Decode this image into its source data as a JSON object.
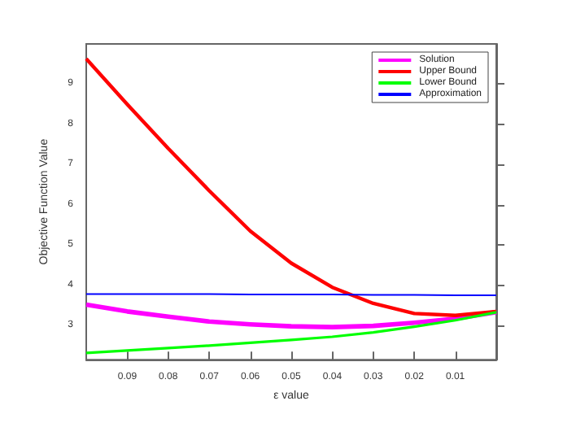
{
  "chart_data": {
    "type": "line",
    "xlabel": "ε value",
    "ylabel": "Objective Function Value",
    "x": [
      0.1,
      0.09,
      0.08,
      0.07,
      0.06,
      0.05,
      0.04,
      0.03,
      0.02,
      0.01,
      0
    ],
    "series": [
      {
        "name": "Solution",
        "color": "#ff00ff",
        "values": [
          3.52,
          3.35,
          3.22,
          3.1,
          3.03,
          2.98,
          2.96,
          2.99,
          3.07,
          3.17,
          3.33
        ]
      },
      {
        "name": "Upper Bound",
        "color": "#ff0000",
        "values": [
          9.63,
          8.5,
          7.4,
          6.35,
          5.35,
          4.55,
          3.95,
          3.55,
          3.3,
          3.25,
          3.35
        ]
      },
      {
        "name": "Lower Bound",
        "color": "#00ff00",
        "values": [
          2.32,
          2.38,
          2.44,
          2.5,
          2.57,
          2.64,
          2.72,
          2.83,
          2.97,
          3.13,
          3.33
        ]
      },
      {
        "name": "Approximation",
        "color": "#0000ff",
        "values": [
          3.78,
          3.78,
          3.78,
          3.78,
          3.77,
          3.77,
          3.77,
          3.76,
          3.76,
          3.75,
          3.75
        ]
      }
    ],
    "xlim": [
      0.1,
      0
    ],
    "xticks": [
      0.09,
      0.08,
      0.07,
      0.06,
      0.05,
      0.04,
      0.03,
      0.02,
      0.01
    ],
    "ylim": [
      2.15,
      10
    ],
    "yticks": [
      3,
      4,
      5,
      6,
      7,
      8,
      9
    ],
    "grid": false,
    "legend": "top right",
    "marker": "none",
    "line_style": "solid"
  }
}
